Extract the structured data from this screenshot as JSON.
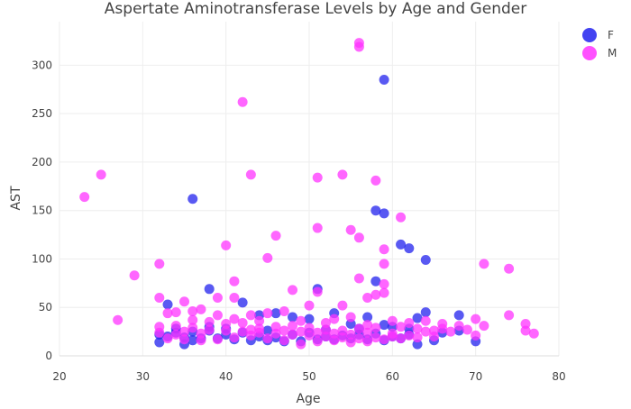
{
  "chart_data": {
    "type": "scatter",
    "title": "Aspertate Aminotransferase Levels by Age and Gender",
    "xlabel": "Age",
    "ylabel": "AST",
    "xlim": [
      20,
      80
    ],
    "ylim": [
      0,
      345
    ],
    "xticks": [
      20,
      30,
      40,
      50,
      60,
      70,
      80
    ],
    "yticks": [
      0,
      50,
      100,
      150,
      200,
      250,
      300
    ],
    "grid": true,
    "legend_position": "top-right",
    "series": [
      {
        "name": "F",
        "color": "#2222ee",
        "points": [
          [
            59,
            285
          ],
          [
            36,
            162
          ],
          [
            58,
            150
          ],
          [
            59,
            147
          ],
          [
            61,
            115
          ],
          [
            62,
            111
          ],
          [
            64,
            99
          ],
          [
            58,
            77
          ],
          [
            38,
            69
          ],
          [
            51,
            69
          ],
          [
            42,
            55
          ],
          [
            33,
            53
          ],
          [
            53,
            44
          ],
          [
            46,
            44
          ],
          [
            44,
            42
          ],
          [
            64,
            45
          ],
          [
            68,
            42
          ],
          [
            57,
            40
          ],
          [
            48,
            40
          ],
          [
            50,
            38
          ],
          [
            63,
            39
          ],
          [
            55,
            33
          ],
          [
            59,
            32
          ],
          [
            60,
            30
          ],
          [
            56,
            28
          ],
          [
            62,
            28
          ],
          [
            52,
            27
          ],
          [
            45,
            26
          ],
          [
            40,
            28
          ],
          [
            38,
            26
          ],
          [
            36,
            25
          ],
          [
            34,
            24
          ],
          [
            32,
            22
          ],
          [
            33,
            20
          ],
          [
            35,
            19
          ],
          [
            37,
            18
          ],
          [
            39,
            18
          ],
          [
            41,
            17
          ],
          [
            43,
            16
          ],
          [
            45,
            16
          ],
          [
            47,
            15
          ],
          [
            49,
            15
          ],
          [
            51,
            17
          ],
          [
            53,
            17
          ],
          [
            55,
            18
          ],
          [
            57,
            17
          ],
          [
            59,
            16
          ],
          [
            61,
            18
          ],
          [
            63,
            12
          ],
          [
            65,
            16
          ],
          [
            70,
            15
          ],
          [
            35,
            12
          ],
          [
            32,
            14
          ],
          [
            44,
            20
          ],
          [
            48,
            22
          ],
          [
            50,
            24
          ],
          [
            54,
            21
          ],
          [
            58,
            23
          ],
          [
            42,
            24
          ],
          [
            46,
            19
          ],
          [
            52,
            20
          ],
          [
            56,
            22
          ],
          [
            60,
            20
          ],
          [
            62,
            22
          ],
          [
            66,
            24
          ],
          [
            68,
            26
          ],
          [
            34,
            28
          ],
          [
            38,
            30
          ],
          [
            40,
            22
          ],
          [
            36,
            16
          ]
        ]
      },
      {
        "name": "M",
        "color": "#ff33ff",
        "points": [
          [
            56,
            323
          ],
          [
            56,
            319
          ],
          [
            42,
            262
          ],
          [
            25,
            187
          ],
          [
            43,
            187
          ],
          [
            54,
            187
          ],
          [
            51,
            184
          ],
          [
            58,
            181
          ],
          [
            23,
            164
          ],
          [
            61,
            143
          ],
          [
            51,
            132
          ],
          [
            55,
            130
          ],
          [
            46,
            124
          ],
          [
            56,
            122
          ],
          [
            40,
            114
          ],
          [
            59,
            110
          ],
          [
            45,
            101
          ],
          [
            32,
            95
          ],
          [
            59,
            95
          ],
          [
            71,
            95
          ],
          [
            74,
            90
          ],
          [
            29,
            83
          ],
          [
            56,
            80
          ],
          [
            41,
            77
          ],
          [
            59,
            74
          ],
          [
            48,
            68
          ],
          [
            51,
            66
          ],
          [
            59,
            65
          ],
          [
            58,
            63
          ],
          [
            32,
            60
          ],
          [
            39,
            60
          ],
          [
            41,
            60
          ],
          [
            57,
            60
          ],
          [
            35,
            56
          ],
          [
            54,
            52
          ],
          [
            50,
            52
          ],
          [
            74,
            42
          ],
          [
            27,
            37
          ],
          [
            70,
            38
          ],
          [
            76,
            33
          ],
          [
            71,
            31
          ],
          [
            76,
            26
          ],
          [
            77,
            23
          ],
          [
            70,
            21
          ],
          [
            60,
            36
          ],
          [
            62,
            34
          ],
          [
            64,
            36
          ],
          [
            66,
            33
          ],
          [
            68,
            31
          ],
          [
            55,
            40
          ],
          [
            53,
            38
          ],
          [
            47,
            46
          ],
          [
            45,
            44
          ],
          [
            43,
            42
          ],
          [
            37,
            48
          ],
          [
            36,
            46
          ],
          [
            34,
            45
          ],
          [
            33,
            44
          ],
          [
            39,
            42
          ],
          [
            41,
            38
          ],
          [
            49,
            36
          ],
          [
            52,
            34
          ],
          [
            57,
            32
          ],
          [
            61,
            30
          ],
          [
            63,
            28
          ],
          [
            65,
            26
          ],
          [
            67,
            25
          ],
          [
            69,
            27
          ],
          [
            32,
            30
          ],
          [
            34,
            31
          ],
          [
            36,
            29
          ],
          [
            38,
            27
          ],
          [
            40,
            26
          ],
          [
            42,
            25
          ],
          [
            44,
            24
          ],
          [
            46,
            23
          ],
          [
            48,
            22
          ],
          [
            50,
            21
          ],
          [
            52,
            20
          ],
          [
            54,
            19
          ],
          [
            56,
            18
          ],
          [
            58,
            19
          ],
          [
            60,
            20
          ],
          [
            62,
            21
          ],
          [
            33,
            18
          ],
          [
            35,
            17
          ],
          [
            37,
            16
          ],
          [
            39,
            17
          ],
          [
            41,
            19
          ],
          [
            43,
            21
          ],
          [
            45,
            18
          ],
          [
            47,
            16
          ],
          [
            49,
            12
          ],
          [
            51,
            15
          ],
          [
            53,
            16
          ],
          [
            55,
            14
          ],
          [
            57,
            15
          ],
          [
            59,
            17
          ],
          [
            61,
            18
          ],
          [
            63,
            19
          ],
          [
            65,
            20
          ],
          [
            44,
            28
          ],
          [
            46,
            30
          ],
          [
            48,
            31
          ],
          [
            50,
            29
          ],
          [
            52,
            27
          ],
          [
            54,
            26
          ],
          [
            56,
            28
          ],
          [
            58,
            29
          ],
          [
            40,
            33
          ],
          [
            38,
            35
          ],
          [
            42,
            34
          ],
          [
            44,
            36
          ],
          [
            36,
            37
          ],
          [
            34,
            22
          ],
          [
            32,
            24
          ],
          [
            35,
            25
          ],
          [
            37,
            23
          ],
          [
            43,
            27
          ],
          [
            47,
            26
          ],
          [
            49,
            25
          ],
          [
            51,
            24
          ],
          [
            53,
            23
          ],
          [
            55,
            22
          ],
          [
            57,
            24
          ],
          [
            66,
            28
          ],
          [
            64,
            25
          ],
          [
            60,
            23
          ]
        ]
      }
    ]
  }
}
